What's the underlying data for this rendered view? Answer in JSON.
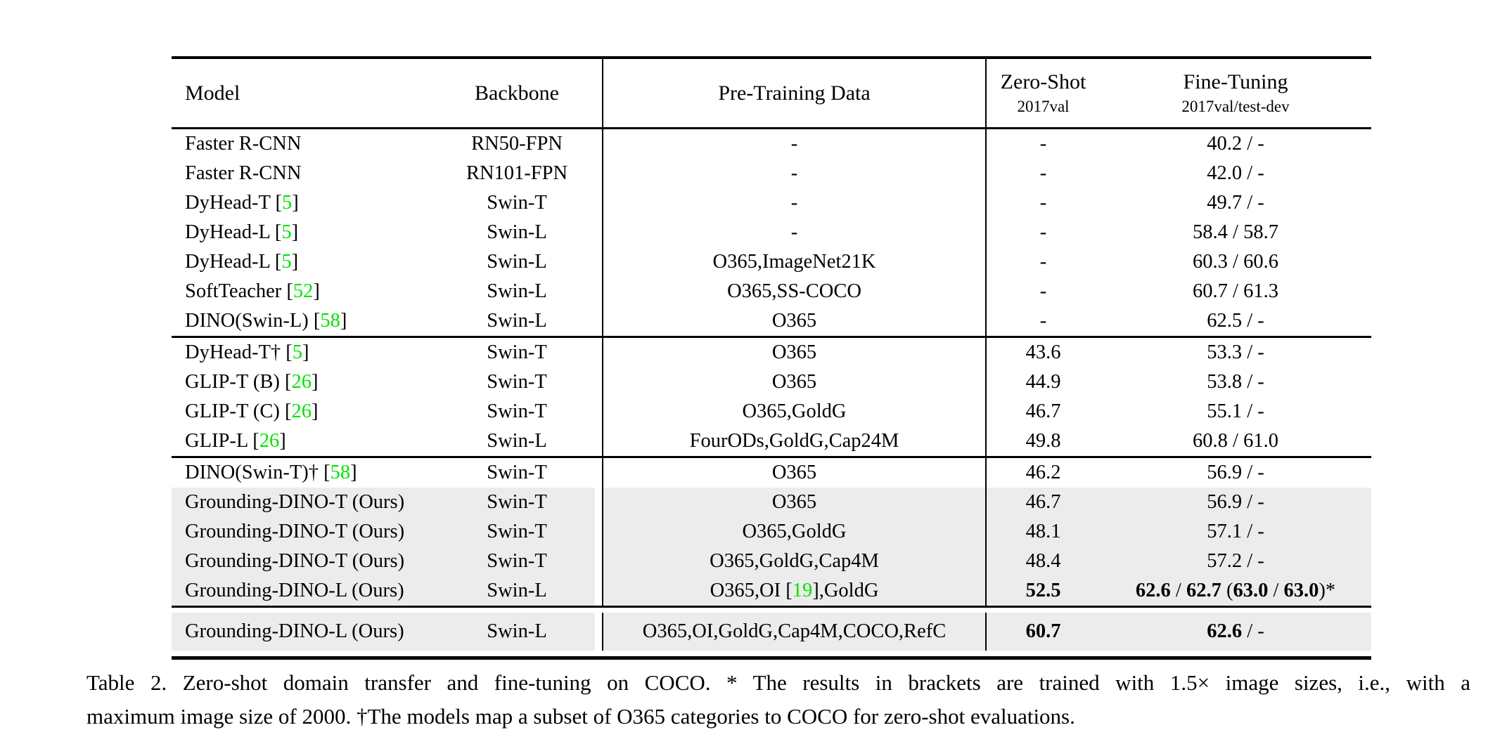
{
  "colors": {
    "citation_green": "#00e400",
    "row_highlight": "#ececec",
    "rule_black": "#000000",
    "page_background": "#ffffff"
  },
  "table": {
    "header": {
      "model": "Model",
      "backbone": "Backbone",
      "pretrain": "Pre-Training Data",
      "zero_shot_title": "Zero-Shot",
      "zero_shot_sub": "2017val",
      "fine_tuning_title": "Fine-Tuning",
      "fine_tuning_sub": "2017val/test-dev"
    },
    "sections": [
      {
        "final": false,
        "rows": [
          {
            "hl": false,
            "cells": [
              [
                {
                  "t": "Faster R-CNN"
                }
              ],
              [
                {
                  "t": "RN50-FPN"
                }
              ],
              [
                {
                  "t": "-"
                }
              ],
              [
                {
                  "t": "-"
                }
              ],
              [
                {
                  "t": "40.2 / -"
                }
              ]
            ]
          },
          {
            "hl": false,
            "cells": [
              [
                {
                  "t": "Faster R-CNN"
                }
              ],
              [
                {
                  "t": "RN101-FPN"
                }
              ],
              [
                {
                  "t": "-"
                }
              ],
              [
                {
                  "t": "-"
                }
              ],
              [
                {
                  "t": "42.0 / -"
                }
              ]
            ]
          },
          {
            "hl": false,
            "cells": [
              [
                {
                  "t": "DyHead-T ["
                },
                {
                  "t": "5",
                  "s": "ref"
                },
                {
                  "t": "]"
                }
              ],
              [
                {
                  "t": "Swin-T"
                }
              ],
              [
                {
                  "t": "-"
                }
              ],
              [
                {
                  "t": "-"
                }
              ],
              [
                {
                  "t": "49.7 / -"
                }
              ]
            ]
          },
          {
            "hl": false,
            "cells": [
              [
                {
                  "t": "DyHead-L ["
                },
                {
                  "t": "5",
                  "s": "ref"
                },
                {
                  "t": "]"
                }
              ],
              [
                {
                  "t": "Swin-L"
                }
              ],
              [
                {
                  "t": "-"
                }
              ],
              [
                {
                  "t": "-"
                }
              ],
              [
                {
                  "t": "58.4 / 58.7"
                }
              ]
            ]
          },
          {
            "hl": false,
            "cells": [
              [
                {
                  "t": "DyHead-L ["
                },
                {
                  "t": "5",
                  "s": "ref"
                },
                {
                  "t": "]"
                }
              ],
              [
                {
                  "t": "Swin-L"
                }
              ],
              [
                {
                  "t": "O365,ImageNet21K"
                }
              ],
              [
                {
                  "t": "-"
                }
              ],
              [
                {
                  "t": "60.3 / 60.6"
                }
              ]
            ]
          },
          {
            "hl": false,
            "cells": [
              [
                {
                  "t": "SoftTeacher ["
                },
                {
                  "t": "52",
                  "s": "ref"
                },
                {
                  "t": "]"
                }
              ],
              [
                {
                  "t": "Swin-L"
                }
              ],
              [
                {
                  "t": "O365,SS-COCO"
                }
              ],
              [
                {
                  "t": "-"
                }
              ],
              [
                {
                  "t": "60.7 / 61.3"
                }
              ]
            ]
          },
          {
            "hl": false,
            "cells": [
              [
                {
                  "t": "DINO(Swin-L) ["
                },
                {
                  "t": "58",
                  "s": "ref"
                },
                {
                  "t": "]"
                }
              ],
              [
                {
                  "t": "Swin-L"
                }
              ],
              [
                {
                  "t": "O365"
                }
              ],
              [
                {
                  "t": "-"
                }
              ],
              [
                {
                  "t": "62.5 / -"
                }
              ]
            ]
          }
        ]
      },
      {
        "final": false,
        "rows": [
          {
            "hl": false,
            "cells": [
              [
                {
                  "t": "DyHead-T† ["
                },
                {
                  "t": "5",
                  "s": "ref"
                },
                {
                  "t": "]"
                }
              ],
              [
                {
                  "t": "Swin-T"
                }
              ],
              [
                {
                  "t": "O365"
                }
              ],
              [
                {
                  "t": "43.6"
                }
              ],
              [
                {
                  "t": "53.3 / -"
                }
              ]
            ]
          },
          {
            "hl": false,
            "cells": [
              [
                {
                  "t": "GLIP-T (B) ["
                },
                {
                  "t": "26",
                  "s": "ref"
                },
                {
                  "t": "]"
                }
              ],
              [
                {
                  "t": "Swin-T"
                }
              ],
              [
                {
                  "t": "O365"
                }
              ],
              [
                {
                  "t": "44.9"
                }
              ],
              [
                {
                  "t": "53.8 / -"
                }
              ]
            ]
          },
          {
            "hl": false,
            "cells": [
              [
                {
                  "t": "GLIP-T (C) ["
                },
                {
                  "t": "26",
                  "s": "ref"
                },
                {
                  "t": "]"
                }
              ],
              [
                {
                  "t": "Swin-T"
                }
              ],
              [
                {
                  "t": "O365,GoldG"
                }
              ],
              [
                {
                  "t": "46.7"
                }
              ],
              [
                {
                  "t": "55.1 / -"
                }
              ]
            ]
          },
          {
            "hl": false,
            "cells": [
              [
                {
                  "t": "GLIP-L ["
                },
                {
                  "t": "26",
                  "s": "ref"
                },
                {
                  "t": "]"
                }
              ],
              [
                {
                  "t": "Swin-L"
                }
              ],
              [
                {
                  "t": "FourODs,GoldG,Cap24M"
                }
              ],
              [
                {
                  "t": "49.8"
                }
              ],
              [
                {
                  "t": "60.8 / 61.0"
                }
              ]
            ]
          }
        ]
      },
      {
        "final": false,
        "rows": [
          {
            "hl": false,
            "cells": [
              [
                {
                  "t": "DINO(Swin-T)† ["
                },
                {
                  "t": "58",
                  "s": "ref"
                },
                {
                  "t": "]"
                }
              ],
              [
                {
                  "t": "Swin-T"
                }
              ],
              [
                {
                  "t": "O365"
                }
              ],
              [
                {
                  "t": "46.2"
                }
              ],
              [
                {
                  "t": "56.9 / -"
                }
              ]
            ]
          },
          {
            "hl": true,
            "cells": [
              [
                {
                  "t": "Grounding-DINO-T (Ours)"
                }
              ],
              [
                {
                  "t": "Swin-T"
                }
              ],
              [
                {
                  "t": "O365"
                }
              ],
              [
                {
                  "t": "46.7"
                }
              ],
              [
                {
                  "t": "56.9 / -"
                }
              ]
            ]
          },
          {
            "hl": true,
            "cells": [
              [
                {
                  "t": "Grounding-DINO-T (Ours)"
                }
              ],
              [
                {
                  "t": "Swin-T"
                }
              ],
              [
                {
                  "t": "O365,GoldG"
                }
              ],
              [
                {
                  "t": "48.1"
                }
              ],
              [
                {
                  "t": "57.1 / -"
                }
              ]
            ]
          },
          {
            "hl": true,
            "cells": [
              [
                {
                  "t": "Grounding-DINO-T (Ours)"
                }
              ],
              [
                {
                  "t": "Swin-T"
                }
              ],
              [
                {
                  "t": "O365,GoldG,Cap4M"
                }
              ],
              [
                {
                  "t": "48.4"
                }
              ],
              [
                {
                  "t": "57.2 / -"
                }
              ]
            ]
          },
          {
            "hl": true,
            "cells": [
              [
                {
                  "t": "Grounding-DINO-L (Ours)"
                }
              ],
              [
                {
                  "t": "Swin-L"
                }
              ],
              [
                {
                  "t": "O365,OI ["
                },
                {
                  "t": "19",
                  "s": "ref"
                },
                {
                  "t": "],GoldG"
                }
              ],
              [
                {
                  "t": "52.5",
                  "s": "b"
                }
              ],
              [
                {
                  "t": "62.6",
                  "s": "b"
                },
                {
                  "t": " / "
                },
                {
                  "t": "62.7",
                  "s": "b"
                },
                {
                  "t": " ("
                },
                {
                  "t": "63.0",
                  "s": "b"
                },
                {
                  "t": " / "
                },
                {
                  "t": "63.0",
                  "s": "b"
                },
                {
                  "t": ")*"
                }
              ]
            ]
          }
        ]
      },
      {
        "final": true,
        "rows": [
          {
            "hl": true,
            "cells": [
              [
                {
                  "t": "Grounding-DINO-L (Ours)"
                }
              ],
              [
                {
                  "t": "Swin-L"
                }
              ],
              [
                {
                  "t": "O365,OI,GoldG,Cap4M,COCO,RefC"
                }
              ],
              [
                {
                  "t": "60.7",
                  "s": "b"
                }
              ],
              [
                {
                  "t": "62.6",
                  "s": "b"
                },
                {
                  "t": " / -"
                }
              ]
            ]
          }
        ]
      }
    ]
  },
  "caption": {
    "line1": "Table 2. Zero-shot domain transfer and fine-tuning on COCO. * The results in brackets are trained with 1.5× image sizes, i.e., with a",
    "line2": "maximum image size of 2000. †The models map a subset of O365 categories to COCO for zero-shot evaluations."
  }
}
